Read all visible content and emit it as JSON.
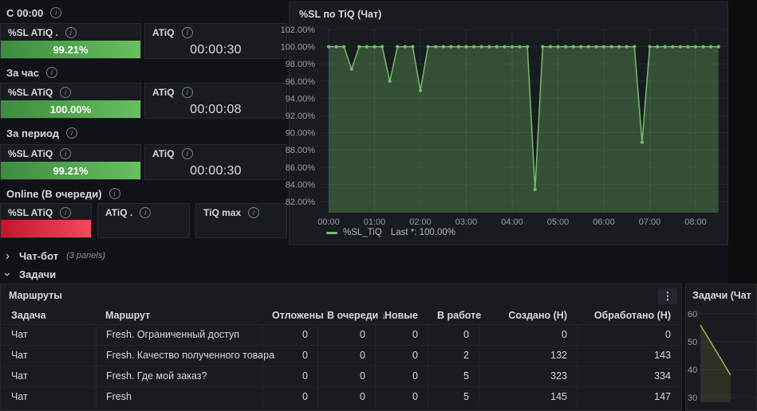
{
  "colors": {
    "accent_green": "#73bf69",
    "bar_green_start": "#3d8b40",
    "bar_green_end": "#68c05f",
    "bar_red_start": "#c4162a",
    "bar_red_end": "#f2495c",
    "mini_line_yellow": "#b3ae4e",
    "panel_bg": "#181b1f",
    "dashboard_bg": "#111217"
  },
  "stats": [
    {
      "label": "С 00:00",
      "panels": [
        {
          "title": "%SL ATiQ .",
          "display": "bar-green",
          "value": "99.21%"
        },
        {
          "title": "ATiQ",
          "display": "text",
          "value": "00:00:30"
        }
      ]
    },
    {
      "label": "За час",
      "panels": [
        {
          "title": "%SL ATiQ",
          "display": "bar-green",
          "value": "100.00%"
        },
        {
          "title": "ATiQ",
          "display": "text",
          "value": "00:00:08"
        }
      ]
    },
    {
      "label": "За период",
      "panels": [
        {
          "title": "%SL ATiQ",
          "display": "bar-green",
          "value": "99.21%"
        },
        {
          "title": "ATiQ",
          "display": "text",
          "value": "00:00:30"
        }
      ]
    },
    {
      "label": "Online (В очереди)",
      "panels": [
        {
          "title": "%SL ATiQ",
          "display": "bar-red",
          "value": ""
        },
        {
          "title": "ATiQ .",
          "display": "text",
          "value": ""
        },
        {
          "title": "TiQ max",
          "display": "text",
          "value": ""
        }
      ]
    }
  ],
  "rows": {
    "chatbot": {
      "label": "Чат-бот",
      "meta": "(3 panels)",
      "collapsed": true
    },
    "tasks": {
      "label": "Задачи",
      "collapsed": false
    }
  },
  "routes": {
    "title": "Маршруты",
    "columns": [
      "Задача",
      "Маршрут",
      "Отложены",
      "В очереди",
      "Новые",
      "В работе",
      "Создано (Н)",
      "Обработано (Н)"
    ],
    "sort_column": "В очереди",
    "sort_direction": "desc",
    "rows": [
      [
        "Чат",
        "Fresh. Ограниченный доступ",
        "0",
        "0",
        "0",
        "0",
        "0",
        "0"
      ],
      [
        "Чат",
        "Fresh. Качество полученного товара",
        "0",
        "0",
        "0",
        "2",
        "132",
        "143"
      ],
      [
        "Чат",
        "Fresh. Где мой заказ?",
        "0",
        "0",
        "0",
        "5",
        "323",
        "334"
      ],
      [
        "Чат",
        "Fresh",
        "0",
        "0",
        "0",
        "5",
        "145",
        "147"
      ]
    ]
  },
  "chart_data": [
    {
      "type": "line",
      "title": "%SL по TiQ (Чат)",
      "color": "#73bf69",
      "fill": "rgba(115,191,105,0.32)",
      "legend": [
        {
          "label": "%SL_TiQ",
          "stat": "Last *: 100.00%",
          "color": "#73bf69"
        }
      ],
      "legend_position": "bottom",
      "grid": true,
      "ylim": [
        80.7,
        102
      ],
      "y_ticks": [
        "102.00%",
        "100.00%",
        "98.00%",
        "96.00%",
        "94.00%",
        "92.00%",
        "90.00%",
        "88.00%",
        "86.00%",
        "84.00%",
        "82.00%"
      ],
      "x_ticks": [
        "00:00",
        "01:00",
        "02:00",
        "03:00",
        "04:00",
        "05:00",
        "06:00",
        "07:00",
        "08:00"
      ],
      "x": [
        "00:00",
        "00:10",
        "00:20",
        "00:30",
        "00:40",
        "00:50",
        "01:00",
        "01:10",
        "01:20",
        "01:30",
        "01:40",
        "01:50",
        "02:00",
        "02:10",
        "02:20",
        "02:30",
        "02:40",
        "02:50",
        "03:00",
        "03:10",
        "03:20",
        "03:30",
        "03:40",
        "03:50",
        "04:00",
        "04:10",
        "04:20",
        "04:30",
        "04:40",
        "04:50",
        "05:00",
        "05:10",
        "05:20",
        "05:30",
        "05:40",
        "05:50",
        "06:00",
        "06:10",
        "06:20",
        "06:30",
        "06:40",
        "06:50",
        "07:00",
        "07:10",
        "07:20",
        "07:30",
        "07:40",
        "07:50",
        "08:00",
        "08:10",
        "08:20",
        "08:30"
      ],
      "values": [
        100,
        100,
        100,
        97.4,
        100,
        100,
        100,
        100,
        96,
        100,
        100,
        100,
        94.9,
        100,
        100,
        100,
        100,
        100,
        100,
        100,
        100,
        100,
        100,
        100,
        100,
        100,
        100,
        83.4,
        100,
        100,
        100,
        100,
        100,
        100,
        100,
        100,
        100,
        100,
        100,
        100,
        100,
        88.9,
        100,
        100,
        100,
        100,
        100,
        100,
        100,
        100,
        100,
        100
      ]
    },
    {
      "type": "line",
      "title": "Задачи (Чат",
      "color": "#b3ae4e",
      "fill": "rgba(179,174,78,0.14)",
      "grid": true,
      "ylim": [
        28,
        62
      ],
      "y_ticks": [
        "60",
        "50",
        "40",
        "30"
      ],
      "x": [
        0,
        1,
        2
      ],
      "values": [
        56,
        47,
        38
      ]
    }
  ]
}
